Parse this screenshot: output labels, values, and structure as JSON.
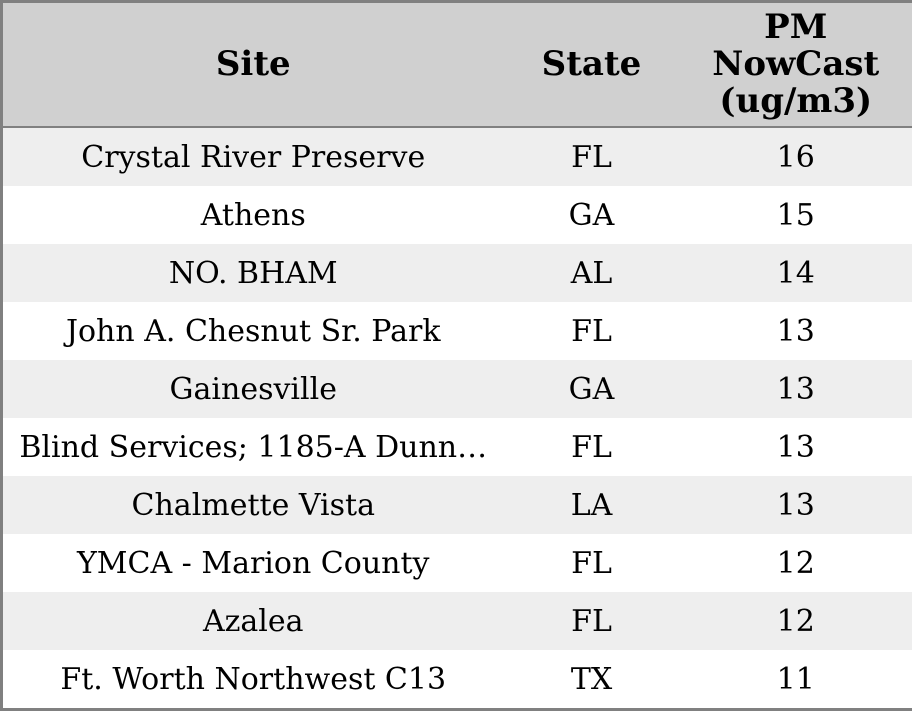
{
  "table": {
    "name": "PM NowCast readings by site",
    "columns": [
      {
        "key": "site",
        "label": "Site"
      },
      {
        "key": "state",
        "label": "State"
      },
      {
        "key": "value",
        "label": "PM NowCast (ug/m3)"
      }
    ],
    "rows": [
      {
        "site": "Crystal River Preserve",
        "state": "FL",
        "value": "16"
      },
      {
        "site": "Athens",
        "state": "GA",
        "value": "15"
      },
      {
        "site": "NO. BHAM",
        "state": "AL",
        "value": "14"
      },
      {
        "site": "John A. Chesnut Sr. Park",
        "state": "FL",
        "value": "13"
      },
      {
        "site": "Gainesville",
        "state": "GA",
        "value": "13"
      },
      {
        "site": "Blind Services; 1185-A Dunn…",
        "state": "FL",
        "value": "13"
      },
      {
        "site": "Chalmette Vista",
        "state": "LA",
        "value": "13"
      },
      {
        "site": "YMCA - Marion County",
        "state": "FL",
        "value": "12"
      },
      {
        "site": "Azalea",
        "state": "FL",
        "value": "12"
      },
      {
        "site": "Ft. Worth Northwest C13",
        "state": "TX",
        "value": "11"
      }
    ]
  },
  "colors": {
    "header_bg": "#d0d0d0",
    "row_alt_bg": "#eeeeee",
    "row_bg": "#ffffff",
    "border": "#808080",
    "text": "#000000"
  }
}
